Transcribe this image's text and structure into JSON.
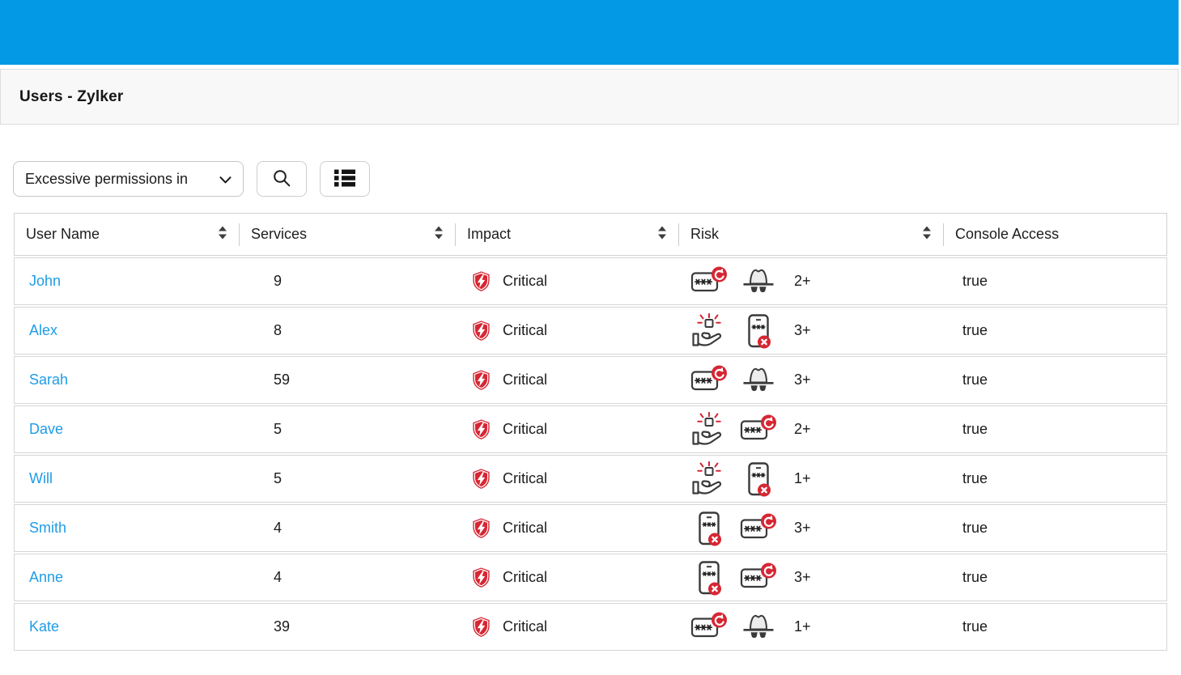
{
  "app": {
    "title_bar": "Users - Zylker"
  },
  "toolbar": {
    "filter_dropdown": {
      "value": "Excessive permissions in",
      "chevron": "chevron-down-icon"
    },
    "search_button_icon": "search-icon",
    "list_view_button_icon": "list-view-icon"
  },
  "table": {
    "columns": [
      {
        "label": "User Name",
        "sortable": true
      },
      {
        "label": "Services",
        "sortable": true
      },
      {
        "label": "Impact",
        "sortable": true
      },
      {
        "label": "Risk",
        "sortable": true
      },
      {
        "label": "Console Access",
        "sortable": false
      }
    ],
    "rows": [
      {
        "name": "John",
        "services": "9",
        "impact": "Critical",
        "risk_icons": [
          "password-rotation",
          "black-hat"
        ],
        "risk_count": "2+",
        "console": "true"
      },
      {
        "name": "Alex",
        "services": "8",
        "impact": "Critical",
        "risk_icons": [
          "privilege-hand",
          "mfa-phone-disabled"
        ],
        "risk_count": "3+",
        "console": "true"
      },
      {
        "name": "Sarah",
        "services": "59",
        "impact": "Critical",
        "risk_icons": [
          "password-rotation",
          "black-hat"
        ],
        "risk_count": "3+",
        "console": "true"
      },
      {
        "name": "Dave",
        "services": "5",
        "impact": "Critical",
        "risk_icons": [
          "privilege-hand",
          "password-rotation"
        ],
        "risk_count": "2+",
        "console": "true"
      },
      {
        "name": "Will",
        "services": "5",
        "impact": "Critical",
        "risk_icons": [
          "privilege-hand",
          "mfa-phone-disabled"
        ],
        "risk_count": "1+",
        "console": "true"
      },
      {
        "name": "Smith",
        "services": "4",
        "impact": "Critical",
        "risk_icons": [
          "mfa-phone-disabled",
          "password-rotation"
        ],
        "risk_count": "3+",
        "console": "true"
      },
      {
        "name": "Anne",
        "services": "4",
        "impact": "Critical",
        "risk_icons": [
          "mfa-phone-disabled",
          "password-rotation"
        ],
        "risk_count": "3+",
        "console": "true"
      },
      {
        "name": "Kate",
        "services": "39",
        "impact": "Critical",
        "risk_icons": [
          "password-rotation",
          "black-hat"
        ],
        "risk_count": "1+",
        "console": "true"
      }
    ],
    "impact_icon": "critical-shield-icon",
    "sort_icon": "sort-arrows-icon",
    "risk_icon_legend": {
      "password-rotation": "password-card-with-red-rotate-badge",
      "black-hat": "spy-hat-with-sunglasses",
      "privilege-hand": "hand-offering-cube-with-red-rays",
      "mfa-phone-disabled": "phone-password-with-red-x-badge"
    }
  },
  "colors": {
    "top_bar_blue": "#0499e4",
    "link_blue": "#1e9ce6",
    "critical_red": "#d62633",
    "icon_outline_gray": "#3a3a3a",
    "row_border": "#d5d5d5"
  }
}
